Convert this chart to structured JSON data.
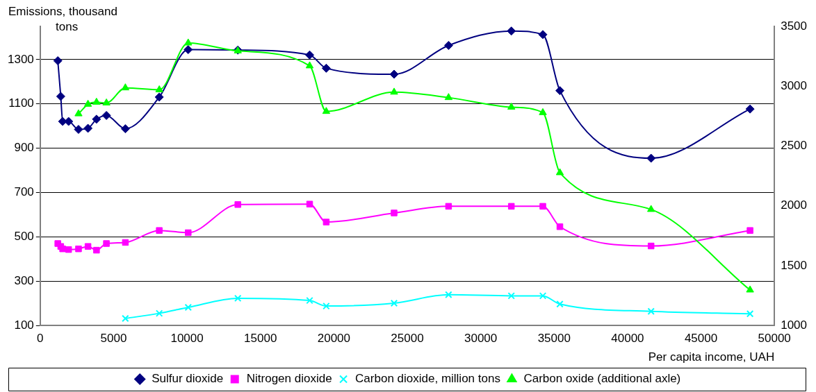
{
  "chart_data": {
    "type": "line",
    "xlabel": "Per capita income, UAH",
    "ylabel": "Emissions, thousand tons",
    "x": [
      1200,
      1400,
      1530,
      1935,
      2610,
      3255,
      3835,
      4510,
      5800,
      8110,
      10080,
      13460,
      18350,
      19480,
      24100,
      27810,
      32085,
      34230,
      35390,
      41600,
      48340
    ],
    "xlim": [
      0,
      50000
    ],
    "xticks": [
      0,
      5000,
      10000,
      15000,
      20000,
      25000,
      30000,
      35000,
      40000,
      45000,
      50000
    ],
    "ylim": [
      100,
      1450
    ],
    "yticks": [
      100,
      300,
      500,
      700,
      900,
      1100,
      1300
    ],
    "y2lim": [
      1000,
      3500
    ],
    "y2ticks": [
      1000,
      1500,
      2000,
      2500,
      3000,
      3500
    ],
    "grid": "y",
    "legend": "bottom",
    "line_style": "solid",
    "series": [
      {
        "name": "Sulfur dioxide",
        "color": "#000080",
        "marker": "diamond",
        "values": [
          1295,
          1134,
          1021,
          1021,
          985,
          990,
          1031,
          1048,
          988,
          1131,
          1345,
          1343,
          1321,
          1261,
          1234,
          1364,
          1429,
          1413,
          1160,
          855,
          1077
        ]
      },
      {
        "name": "Nitrogen dioxide",
        "color": "#ff00ff",
        "marker": "square",
        "values": [
          470,
          457,
          446,
          443,
          446,
          457,
          440,
          470,
          475,
          529,
          519,
          646,
          648,
          567,
          608,
          638,
          638,
          638,
          546,
          459,
          529
        ]
      },
      {
        "name": "Carbon dioxide, million tons",
        "color": "#00ffff",
        "marker": "cross",
        "values": [
          null,
          null,
          null,
          null,
          null,
          null,
          null,
          null,
          132,
          155,
          182,
          223,
          213,
          188,
          201,
          239,
          234,
          234,
          197,
          164,
          153
        ]
      },
      {
        "name": "Carbon oxide (additional axle)",
        "color": "#00ff00",
        "marker": "triangle",
        "axis": "y2",
        "values": [
          null,
          null,
          null,
          null,
          2769,
          2849,
          2866,
          2860,
          2986,
          2970,
          3361,
          3295,
          3170,
          2789,
          2950,
          2905,
          2825,
          2779,
          2277,
          1970,
          1297
        ]
      }
    ]
  }
}
